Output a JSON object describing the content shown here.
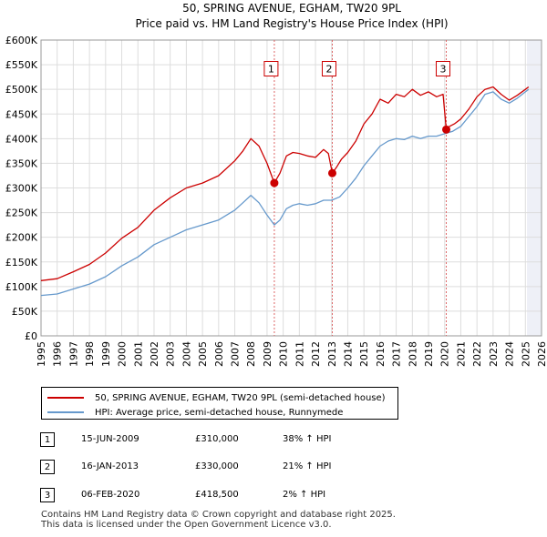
{
  "chart_data": {
    "type": "line",
    "title": "50, SPRING AVENUE, EGHAM, TW20 9PL",
    "subtitle": "Price paid vs. HM Land Registry's House Price Index (HPI)",
    "xlabel": "",
    "ylabel": "",
    "xlim": [
      1995,
      2026
    ],
    "ylim": [
      0,
      600000
    ],
    "y_ticks": [
      0,
      50000,
      100000,
      150000,
      200000,
      250000,
      300000,
      350000,
      400000,
      450000,
      500000,
      550000,
      600000
    ],
    "y_tick_labels": [
      "£0",
      "£50K",
      "£100K",
      "£150K",
      "£200K",
      "£250K",
      "£300K",
      "£350K",
      "£400K",
      "£450K",
      "£500K",
      "£550K",
      "£600K"
    ],
    "x_ticks": [
      1995,
      1996,
      1997,
      1998,
      1999,
      2000,
      2001,
      2002,
      2003,
      2004,
      2005,
      2006,
      2007,
      2008,
      2009,
      2010,
      2011,
      2012,
      2013,
      2014,
      2015,
      2016,
      2017,
      2018,
      2019,
      2020,
      2021,
      2022,
      2023,
      2024,
      2025,
      2026
    ],
    "x_tick_labels": [
      "1995",
      "1996",
      "1997",
      "1998",
      "1999",
      "2000",
      "2001",
      "2002",
      "2003",
      "2004",
      "2005",
      "2006",
      "2007",
      "2008",
      "2009",
      "2010",
      "2011",
      "2012",
      "2013",
      "2014",
      "2015",
      "2016",
      "2017",
      "2018",
      "2019",
      "2020",
      "2021",
      "2022",
      "2023",
      "2024",
      "2025",
      "2026"
    ],
    "grid": true,
    "future_shading_from": 2025.1,
    "series": [
      {
        "name": "50, SPRING AVENUE, EGHAM, TW20 9PL (semi-detached house)",
        "color": "#cc0000",
        "x": [
          1995.0,
          1996.0,
          1997.0,
          1998.0,
          1999.0,
          2000.0,
          2001.0,
          2002.0,
          2003.0,
          2004.0,
          2005.0,
          2006.0,
          2007.0,
          2007.5,
          2008.0,
          2008.5,
          2009.0,
          2009.45,
          2009.8,
          2010.2,
          2010.6,
          2011.0,
          2011.5,
          2012.0,
          2012.5,
          2012.8,
          2013.04,
          2013.3,
          2013.6,
          2014.0,
          2014.5,
          2015.0,
          2015.5,
          2016.0,
          2016.5,
          2017.0,
          2017.5,
          2018.0,
          2018.5,
          2019.0,
          2019.5,
          2019.9,
          2020.1,
          2020.3,
          2020.6,
          2021.0,
          2021.5,
          2022.0,
          2022.5,
          2023.0,
          2023.5,
          2024.0,
          2024.5,
          2025.0,
          2025.2
        ],
        "values": [
          112000,
          116000,
          130000,
          145000,
          168000,
          198000,
          220000,
          255000,
          280000,
          300000,
          310000,
          325000,
          355000,
          375000,
          400000,
          385000,
          350000,
          310000,
          330000,
          365000,
          372000,
          370000,
          365000,
          362000,
          378000,
          370000,
          330000,
          342000,
          358000,
          372000,
          395000,
          430000,
          450000,
          480000,
          472000,
          490000,
          485000,
          500000,
          488000,
          495000,
          485000,
          490000,
          418500,
          425000,
          430000,
          440000,
          460000,
          485000,
          500000,
          505000,
          490000,
          478000,
          488000,
          500000,
          505000
        ]
      },
      {
        "name": "HPI: Average price, semi-detached house, Runnymede",
        "color": "#6699cc",
        "x": [
          1995.0,
          1996.0,
          1997.0,
          1998.0,
          1999.0,
          2000.0,
          2001.0,
          2002.0,
          2003.0,
          2004.0,
          2005.0,
          2006.0,
          2007.0,
          2007.5,
          2008.0,
          2008.5,
          2009.0,
          2009.45,
          2009.8,
          2010.2,
          2010.6,
          2011.0,
          2011.5,
          2012.0,
          2012.5,
          2013.0,
          2013.5,
          2014.0,
          2014.5,
          2015.0,
          2015.5,
          2016.0,
          2016.5,
          2017.0,
          2017.5,
          2018.0,
          2018.5,
          2019.0,
          2019.5,
          2020.0,
          2020.5,
          2021.0,
          2021.5,
          2022.0,
          2022.5,
          2023.0,
          2023.5,
          2024.0,
          2024.5,
          2025.0,
          2025.2
        ],
        "values": [
          82000,
          85000,
          95000,
          105000,
          120000,
          142000,
          160000,
          185000,
          200000,
          215000,
          225000,
          235000,
          255000,
          270000,
          285000,
          270000,
          245000,
          225000,
          235000,
          258000,
          265000,
          268000,
          265000,
          268000,
          275000,
          275000,
          282000,
          300000,
          320000,
          345000,
          365000,
          385000,
          395000,
          400000,
          398000,
          405000,
          400000,
          405000,
          405000,
          410000,
          415000,
          425000,
          445000,
          465000,
          490000,
          495000,
          480000,
          472000,
          482000,
          495000,
          500000
        ]
      }
    ],
    "markers": [
      {
        "label": "1",
        "x": 2009.45,
        "y": 310000
      },
      {
        "label": "2",
        "x": 2013.04,
        "y": 330000
      },
      {
        "label": "3",
        "x": 2020.1,
        "y": 418500
      }
    ],
    "vlines": [
      2009.45,
      2013.04,
      2020.1
    ],
    "annotation_y": 540000
  },
  "legend": {
    "property_label": "50, SPRING AVENUE, EGHAM, TW20 9PL (semi-detached house)",
    "hpi_label": "HPI: Average price, semi-detached house, Runnymede"
  },
  "transactions": [
    {
      "num": "1",
      "date": "15-JUN-2009",
      "price": "£310,000",
      "hpi": "38% ↑ HPI"
    },
    {
      "num": "2",
      "date": "16-JAN-2013",
      "price": "£330,000",
      "hpi": "21% ↑ HPI"
    },
    {
      "num": "3",
      "date": "06-FEB-2020",
      "price": "£418,500",
      "hpi": "2% ↑ HPI"
    }
  ],
  "footer": {
    "line1": "Contains HM Land Registry data © Crown copyright and database right 2025.",
    "line2": "This data is licensed under the Open Government Licence v3.0."
  }
}
